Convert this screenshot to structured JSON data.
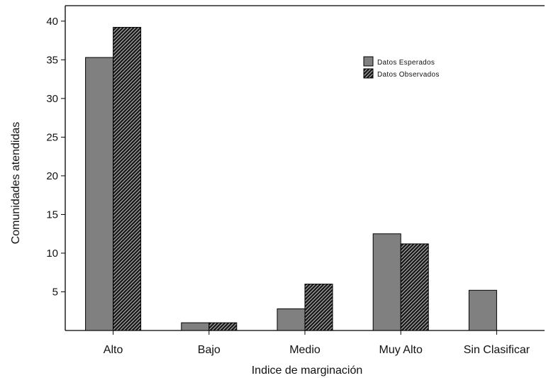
{
  "chart_data": {
    "type": "bar",
    "title": "",
    "xlabel": "Indice de marginación",
    "ylabel": "Comunidades atendidas",
    "categories": [
      "Alto",
      "Bajo",
      "Medio",
      "Muy Alto",
      "Sin Clasificar"
    ],
    "series": [
      {
        "name": "Datos Esperados",
        "values": [
          35.3,
          1.0,
          2.8,
          12.5,
          5.2
        ],
        "color": "#808080",
        "pattern": "solid"
      },
      {
        "name": "Datos Observados",
        "values": [
          39.2,
          1.0,
          6.0,
          11.2,
          0
        ],
        "color": "#1a1a1a",
        "pattern": "hatch"
      }
    ],
    "ylim": [
      0,
      42
    ],
    "yticks": [
      5,
      10,
      15,
      20,
      25,
      30,
      35,
      40
    ],
    "grid": false,
    "legend_position": "top-right"
  }
}
